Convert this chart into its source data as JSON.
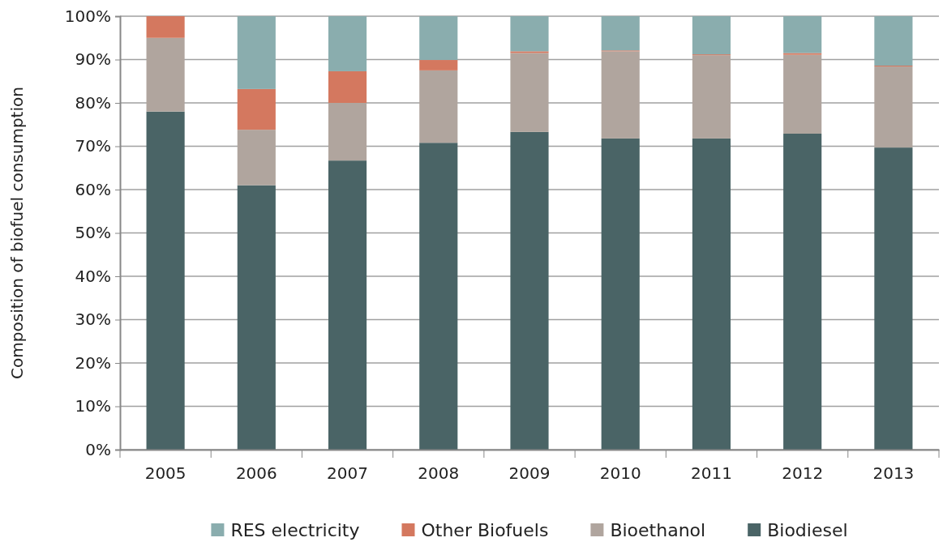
{
  "chart_data": {
    "type": "bar",
    "stacked": true,
    "ylabel": "Composition of biofuel consumption",
    "categories": [
      "2005",
      "2006",
      "2007",
      "2008",
      "2009",
      "2010",
      "2011",
      "2012",
      "2013"
    ],
    "series": [
      {
        "name": "Biodiesel",
        "color": "#4a6466",
        "values": [
          78,
          61,
          66.7,
          70.8,
          73.3,
          71.8,
          71.8,
          72.9,
          69.7
        ]
      },
      {
        "name": "Bioethanol",
        "color": "#b0a59e",
        "values": [
          17,
          12.8,
          13.3,
          16.7,
          18.2,
          20.1,
          19.2,
          18.2,
          18.7
        ]
      },
      {
        "name": "Other Biofuels",
        "color": "#d4785f",
        "values": [
          5,
          9.4,
          7.3,
          2.4,
          0.4,
          0.2,
          0.2,
          0.4,
          0.2
        ]
      },
      {
        "name": "RES electricity",
        "color": "#8aadae",
        "values": [
          0,
          16.8,
          12.7,
          10.1,
          8.1,
          7.9,
          8.8,
          8.5,
          11.4
        ]
      }
    ],
    "ylim": [
      0,
      100
    ],
    "yticks": [
      {
        "value": 0,
        "label": "0%"
      },
      {
        "value": 10,
        "label": "10%"
      },
      {
        "value": 20,
        "label": "20%"
      },
      {
        "value": 30,
        "label": "30%"
      },
      {
        "value": 40,
        "label": "40%"
      },
      {
        "value": 50,
        "label": "50%"
      },
      {
        "value": 60,
        "label": "60%"
      },
      {
        "value": 70,
        "label": "70%"
      },
      {
        "value": 80,
        "label": "80%"
      },
      {
        "value": 90,
        "label": "90%"
      },
      {
        "value": 100,
        "label": "100%"
      }
    ],
    "grid": "y",
    "legend": "bottom"
  }
}
